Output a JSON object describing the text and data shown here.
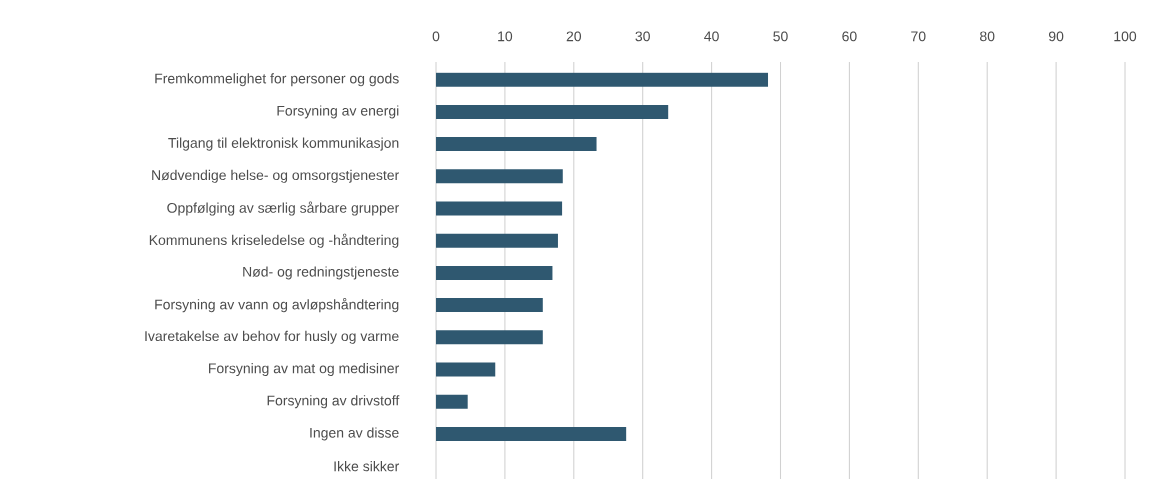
{
  "chart_data": {
    "type": "bar",
    "orientation": "horizontal",
    "categories": [
      "Fremkommelighet for personer og gods",
      "Forsyning av energi",
      "Tilgang til elektronisk kommunikasjon",
      "Nødvendige helse- og omsorgstjenester",
      "Oppfølging av særlig sårbare grupper",
      "Kommunens kriseledelse og -håndtering",
      "Nød- og redningstjeneste",
      "Forsyning av vann og avløpshåndtering",
      "Ivaretakelse av behov for husly og varme",
      "Forsyning av mat og medisiner",
      "Forsyning av drivstoff",
      "Ingen av disse",
      "Ikke sikker"
    ],
    "values": [
      48.2,
      33.7,
      23.3,
      18.4,
      18.3,
      17.7,
      16.9,
      15.5,
      15.5,
      8.6,
      4.6,
      27.6,
      0
    ],
    "color": "#2f5870",
    "xlim": [
      0,
      100
    ],
    "xticks": [
      0,
      10,
      20,
      30,
      40,
      50,
      60,
      70,
      80,
      90,
      100
    ],
    "grid": "x"
  }
}
